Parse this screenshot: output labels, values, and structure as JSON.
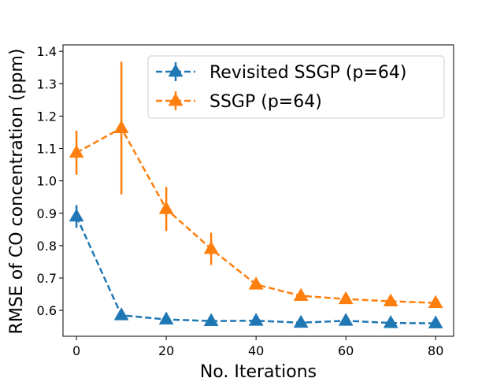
{
  "chart_data": {
    "type": "line",
    "title": "",
    "xlabel": "No. Iterations",
    "ylabel": "RMSE of CO concentration (ppm)",
    "xlim": [
      -3,
      84
    ],
    "ylim": [
      0.52,
      1.42
    ],
    "xticks": [
      0,
      20,
      40,
      60,
      80
    ],
    "xtick_labels": [
      "0",
      "20",
      "40",
      "60",
      "80"
    ],
    "yticks": [
      0.6,
      0.7,
      0.8,
      0.9,
      1.0,
      1.1,
      1.2,
      1.3,
      1.4
    ],
    "ytick_labels": [
      "0.6",
      "0.7",
      "0.8",
      "0.9",
      "1.0",
      "1.1",
      "1.2",
      "1.3",
      "1.4"
    ],
    "legend_position": "top-right",
    "series": [
      {
        "name": "Revisited SSGP (p=64)",
        "color": "#1f77b4",
        "marker": "triangle-up",
        "line_style": "dashed",
        "x": [
          0,
          10,
          20,
          30,
          40,
          50,
          60,
          70,
          80
        ],
        "y": [
          0.89,
          0.585,
          0.572,
          0.567,
          0.568,
          0.562,
          0.568,
          0.561,
          0.56
        ],
        "err": [
          0.035,
          0.008,
          0.005,
          0.005,
          0.005,
          0.005,
          0.005,
          0.005,
          0.005
        ]
      },
      {
        "name": "SSGP (p=64)",
        "color": "#ff7f0e",
        "marker": "triangle-up",
        "line_style": "dashed",
        "x": [
          0,
          10,
          20,
          30,
          40,
          50,
          60,
          70,
          80
        ],
        "y": [
          1.087,
          1.163,
          0.913,
          0.79,
          0.68,
          0.645,
          0.635,
          0.628,
          0.623
        ],
        "err": [
          0.068,
          0.205,
          0.068,
          0.05,
          0.01,
          0.008,
          0.006,
          0.006,
          0.006
        ]
      }
    ]
  }
}
